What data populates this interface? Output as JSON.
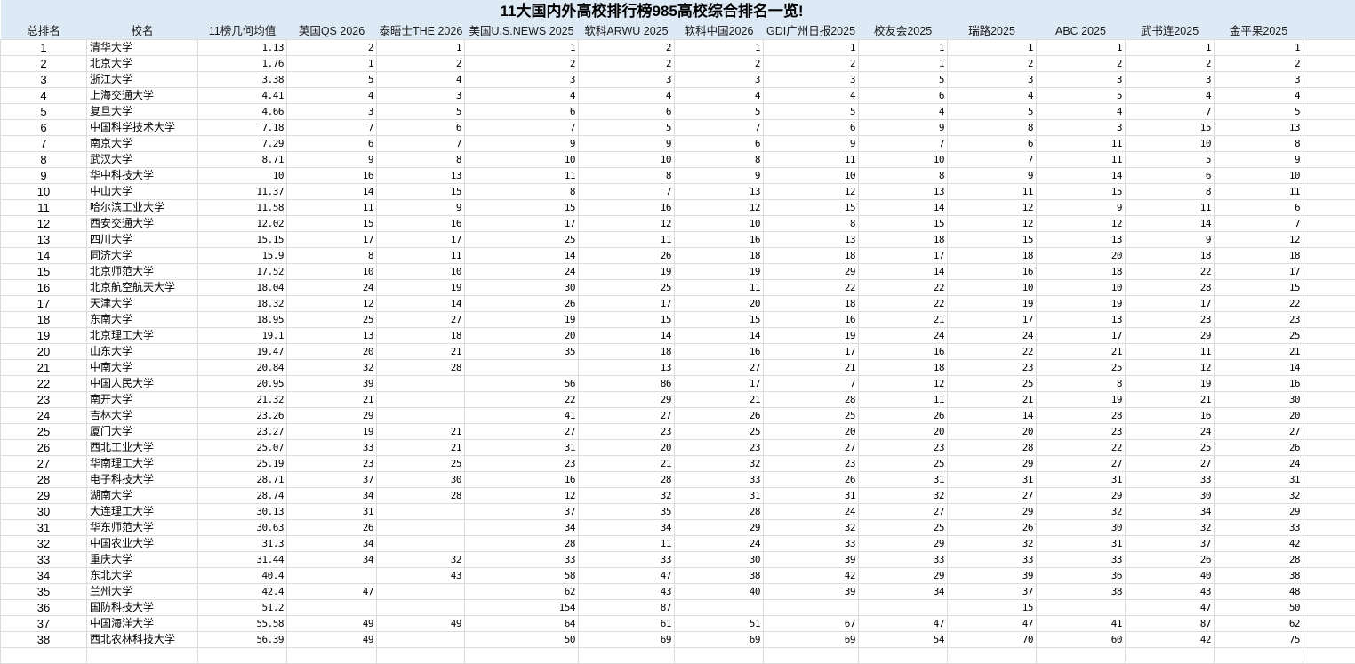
{
  "title": "11大国内外高校排行榜985高校综合排名一览!",
  "colors": {
    "header_bg": "#dde9f5",
    "grid": "#dcdcdc"
  },
  "headers": [
    "总排名",
    "校名",
    "11榜几何均值",
    "英国QS 2026",
    "泰晤士THE 2026",
    "美国U.S.NEWS 2025",
    "软科ARWU 2025",
    "软科中国2026",
    "GDI广州日报2025",
    "校友会2025",
    "瑞路2025",
    "ABC 2025",
    "武书连2025",
    "金平果2025"
  ],
  "rows": [
    [
      "1",
      "清华大学",
      "1.13",
      "2",
      "1",
      "1",
      "2",
      "1",
      "1",
      "1",
      "1",
      "1",
      "1",
      "1"
    ],
    [
      "2",
      "北京大学",
      "1.76",
      "1",
      "2",
      "2",
      "2",
      "2",
      "2",
      "1",
      "2",
      "2",
      "2",
      "2"
    ],
    [
      "3",
      "浙江大学",
      "3.38",
      "5",
      "4",
      "3",
      "3",
      "3",
      "3",
      "5",
      "3",
      "3",
      "3",
      "3"
    ],
    [
      "4",
      "上海交通大学",
      "4.41",
      "4",
      "3",
      "4",
      "4",
      "4",
      "4",
      "6",
      "4",
      "5",
      "4",
      "4"
    ],
    [
      "5",
      "复旦大学",
      "4.66",
      "3",
      "5",
      "6",
      "6",
      "5",
      "5",
      "4",
      "5",
      "4",
      "7",
      "5"
    ],
    [
      "6",
      "中国科学技术大学",
      "7.18",
      "7",
      "6",
      "7",
      "5",
      "7",
      "6",
      "9",
      "8",
      "3",
      "15",
      "13"
    ],
    [
      "7",
      "南京大学",
      "7.29",
      "6",
      "7",
      "9",
      "9",
      "6",
      "9",
      "7",
      "6",
      "11",
      "10",
      "8"
    ],
    [
      "8",
      "武汉大学",
      "8.71",
      "9",
      "8",
      "10",
      "10",
      "8",
      "11",
      "10",
      "7",
      "11",
      "5",
      "9"
    ],
    [
      "9",
      "华中科技大学",
      "10",
      "16",
      "13",
      "11",
      "8",
      "9",
      "10",
      "8",
      "9",
      "14",
      "6",
      "10"
    ],
    [
      "10",
      "中山大学",
      "11.37",
      "14",
      "15",
      "8",
      "7",
      "13",
      "12",
      "13",
      "11",
      "15",
      "8",
      "11"
    ],
    [
      "11",
      "哈尔滨工业大学",
      "11.58",
      "11",
      "9",
      "15",
      "16",
      "12",
      "15",
      "14",
      "12",
      "9",
      "11",
      "6"
    ],
    [
      "12",
      "西安交通大学",
      "12.02",
      "15",
      "16",
      "17",
      "12",
      "10",
      "8",
      "15",
      "12",
      "12",
      "14",
      "7"
    ],
    [
      "13",
      "四川大学",
      "15.15",
      "17",
      "17",
      "25",
      "11",
      "16",
      "13",
      "18",
      "15",
      "13",
      "9",
      "12"
    ],
    [
      "14",
      "同济大学",
      "15.9",
      "8",
      "11",
      "14",
      "26",
      "18",
      "18",
      "17",
      "18",
      "20",
      "18",
      "18"
    ],
    [
      "15",
      "北京师范大学",
      "17.52",
      "10",
      "10",
      "24",
      "19",
      "19",
      "29",
      "14",
      "16",
      "18",
      "22",
      "17"
    ],
    [
      "16",
      "北京航空航天大学",
      "18.04",
      "24",
      "19",
      "30",
      "25",
      "11",
      "22",
      "22",
      "10",
      "10",
      "28",
      "15"
    ],
    [
      "17",
      "天津大学",
      "18.32",
      "12",
      "14",
      "26",
      "17",
      "20",
      "18",
      "22",
      "19",
      "19",
      "17",
      "22"
    ],
    [
      "18",
      "东南大学",
      "18.95",
      "25",
      "27",
      "19",
      "15",
      "15",
      "16",
      "21",
      "17",
      "13",
      "23",
      "23"
    ],
    [
      "19",
      "北京理工大学",
      "19.1",
      "13",
      "18",
      "20",
      "14",
      "14",
      "19",
      "24",
      "24",
      "17",
      "29",
      "25"
    ],
    [
      "20",
      "山东大学",
      "19.47",
      "20",
      "21",
      "35",
      "18",
      "16",
      "17",
      "16",
      "22",
      "21",
      "11",
      "21"
    ],
    [
      "21",
      "中南大学",
      "20.84",
      "32",
      "28",
      "",
      "13",
      "27",
      "21",
      "18",
      "23",
      "25",
      "12",
      "14"
    ],
    [
      "22",
      "中国人民大学",
      "20.95",
      "39",
      "",
      "56",
      "86",
      "17",
      "7",
      "12",
      "25",
      "8",
      "19",
      "16"
    ],
    [
      "23",
      "南开大学",
      "21.32",
      "21",
      "",
      "22",
      "29",
      "21",
      "28",
      "11",
      "21",
      "19",
      "21",
      "30"
    ],
    [
      "24",
      "吉林大学",
      "23.26",
      "29",
      "",
      "41",
      "27",
      "26",
      "25",
      "26",
      "14",
      "28",
      "16",
      "20"
    ],
    [
      "25",
      "厦门大学",
      "23.27",
      "19",
      "21",
      "27",
      "23",
      "25",
      "20",
      "20",
      "20",
      "23",
      "24",
      "27"
    ],
    [
      "26",
      "西北工业大学",
      "25.07",
      "33",
      "21",
      "31",
      "20",
      "23",
      "27",
      "23",
      "28",
      "22",
      "25",
      "26"
    ],
    [
      "27",
      "华南理工大学",
      "25.19",
      "23",
      "25",
      "23",
      "21",
      "32",
      "23",
      "25",
      "29",
      "27",
      "27",
      "24"
    ],
    [
      "28",
      "电子科技大学",
      "28.71",
      "37",
      "30",
      "16",
      "28",
      "33",
      "26",
      "31",
      "31",
      "31",
      "33",
      "31"
    ],
    [
      "29",
      "湖南大学",
      "28.74",
      "34",
      "28",
      "12",
      "32",
      "31",
      "31",
      "32",
      "27",
      "29",
      "30",
      "32"
    ],
    [
      "30",
      "大连理工大学",
      "30.13",
      "31",
      "",
      "37",
      "35",
      "28",
      "24",
      "27",
      "29",
      "32",
      "34",
      "29"
    ],
    [
      "31",
      "华东师范大学",
      "30.63",
      "26",
      "",
      "34",
      "34",
      "29",
      "32",
      "25",
      "26",
      "30",
      "32",
      "33"
    ],
    [
      "32",
      "中国农业大学",
      "31.3",
      "34",
      "",
      "28",
      "11",
      "24",
      "33",
      "29",
      "32",
      "31",
      "37",
      "42"
    ],
    [
      "33",
      "重庆大学",
      "31.44",
      "34",
      "32",
      "33",
      "33",
      "30",
      "39",
      "33",
      "33",
      "33",
      "26",
      "28"
    ],
    [
      "34",
      "东北大学",
      "40.4",
      "",
      "43",
      "58",
      "47",
      "38",
      "42",
      "29",
      "39",
      "36",
      "40",
      "38"
    ],
    [
      "35",
      "兰州大学",
      "42.4",
      "47",
      "",
      "62",
      "43",
      "40",
      "39",
      "34",
      "37",
      "38",
      "43",
      "48"
    ],
    [
      "36",
      "国防科技大学",
      "51.2",
      "",
      "",
      "154",
      "87",
      "",
      "",
      "",
      "15",
      "",
      "47",
      "50"
    ],
    [
      "37",
      "中国海洋大学",
      "55.58",
      "49",
      "49",
      "64",
      "61",
      "51",
      "67",
      "47",
      "47",
      "41",
      "87",
      "62"
    ],
    [
      "38",
      "西北农林科技大学",
      "56.39",
      "49",
      "",
      "50",
      "69",
      "69",
      "69",
      "54",
      "70",
      "60",
      "42",
      "75"
    ]
  ]
}
